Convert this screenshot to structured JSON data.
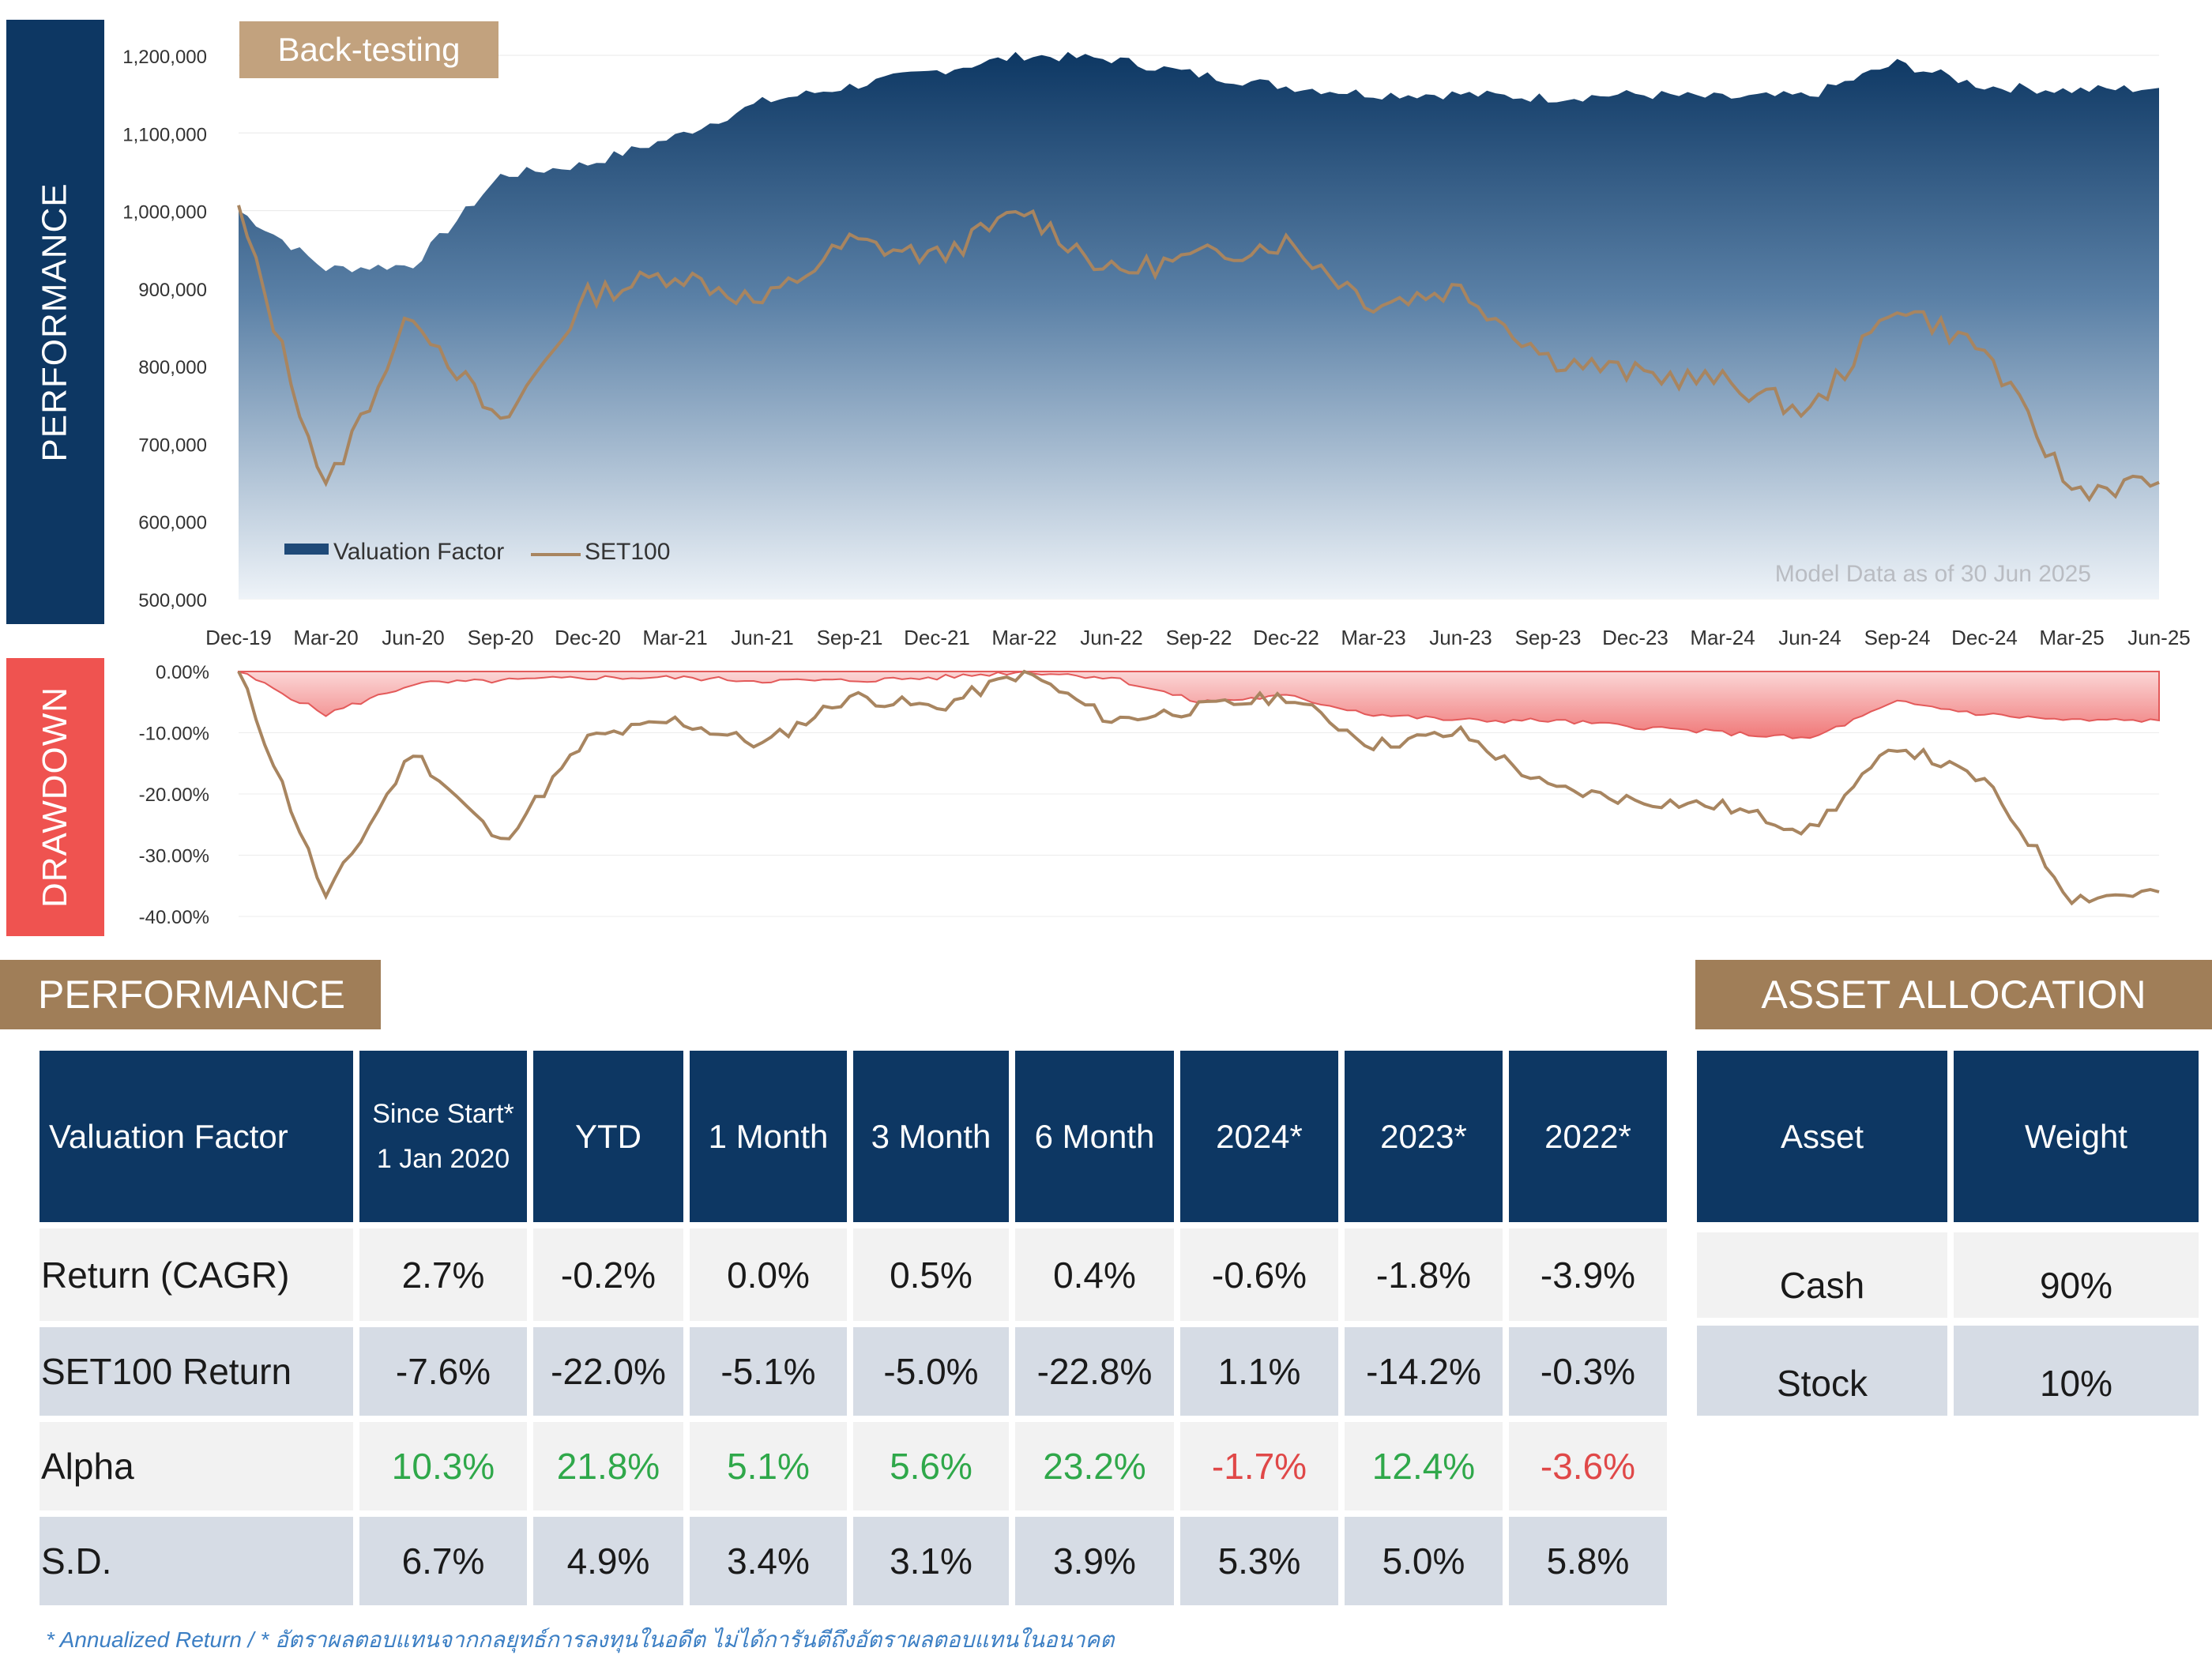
{
  "side_tabs": {
    "performance": "PERFORMANCE",
    "drawdown": "DRAWDOWN"
  },
  "colors": {
    "navy": "#0d3763",
    "gold": "#a88560",
    "gold_light": "#c2a27e",
    "red": "#ef5350",
    "positive": "#2fa84a",
    "negative": "#e04848"
  },
  "chart_data": [
    {
      "type": "area",
      "label": "Back-testing",
      "note": "Model Data as of 30 Jun 2025",
      "x_ticks": [
        "Dec-19",
        "Mar-20",
        "Jun-20",
        "Sep-20",
        "Dec-20",
        "Mar-21",
        "Jun-21",
        "Sep-21",
        "Dec-21",
        "Mar-22",
        "Jun-22",
        "Sep-22",
        "Dec-22",
        "Mar-23",
        "Jun-23",
        "Sep-23",
        "Dec-23",
        "Mar-24",
        "Jun-24",
        "Sep-24",
        "Dec-24",
        "Mar-25",
        "Jun-25"
      ],
      "y_ticks": [
        "1,200,000",
        "1,100,000",
        "1,000,000",
        "900,000",
        "800,000",
        "700,000",
        "600,000",
        "500,000"
      ],
      "ylim": [
        500000,
        1200000
      ],
      "legend": [
        "Valuation Factor",
        "SET100"
      ],
      "series": [
        {
          "name": "Valuation Factor",
          "values": [
            1000000,
            925000,
            930000,
            1045000,
            1060000,
            1095000,
            1140000,
            1160000,
            1180000,
            1200000,
            1195000,
            1175000,
            1160000,
            1150000,
            1150000,
            1145000,
            1150000,
            1145000,
            1148000,
            1190000,
            1160000,
            1155000,
            1158000
          ]
        },
        {
          "name": "SET100",
          "values": [
            1000000,
            640000,
            870000,
            720000,
            890000,
            920000,
            880000,
            960000,
            940000,
            1000000,
            920000,
            940000,
            960000,
            880000,
            900000,
            810000,
            790000,
            780000,
            740000,
            880000,
            820000,
            640000,
            650000
          ]
        }
      ]
    },
    {
      "type": "area",
      "y_ticks": [
        "0.00%",
        "-10.00%",
        "-20.00%",
        "-30.00%",
        "-40.00%"
      ],
      "ylim": [
        -40,
        0
      ],
      "series": [
        {
          "name": "Valuation Factor",
          "values": [
            0,
            -7,
            -2,
            -1.5,
            -1,
            -1,
            -1.5,
            -1.5,
            -1,
            0,
            -1,
            -5,
            -4,
            -7,
            -8,
            -8,
            -9,
            -10,
            -11,
            -5,
            -7,
            -8,
            -8
          ]
        },
        {
          "name": "SET100",
          "values": [
            0,
            -37,
            -13,
            -28,
            -11,
            -8,
            -12,
            -4,
            -6,
            0,
            -8,
            -6,
            -4,
            -12,
            -10,
            -19,
            -21,
            -22,
            -26,
            -12,
            -18,
            -37,
            -36
          ]
        }
      ]
    }
  ],
  "performance": {
    "title": "PERFORMANCE",
    "headers": [
      "Valuation Factor",
      "Since Start*",
      "1 Jan 2020",
      "YTD",
      "1 Month",
      "3 Month",
      "6 Month",
      "2024*",
      "2023*",
      "2022*"
    ],
    "rows": [
      {
        "label": "Return (CAGR)",
        "values": [
          "2.7%",
          "-0.2%",
          "0.0%",
          "0.5%",
          "0.4%",
          "-0.6%",
          "-1.8%",
          "-3.9%"
        ]
      },
      {
        "label": "SET100 Return",
        "values": [
          "-7.6%",
          "-22.0%",
          "-5.1%",
          "-5.0%",
          "-22.8%",
          "1.1%",
          "-14.2%",
          "-0.3%"
        ]
      },
      {
        "label": "Alpha",
        "values": [
          "10.3%",
          "21.8%",
          "5.1%",
          "5.6%",
          "23.2%",
          "-1.7%",
          "12.4%",
          "-3.6%"
        ]
      },
      {
        "label": "S.D.",
        "values": [
          "6.7%",
          "4.9%",
          "3.4%",
          "3.1%",
          "3.9%",
          "5.3%",
          "5.0%",
          "5.8%"
        ]
      }
    ]
  },
  "asset_allocation": {
    "title": "ASSET ALLOCATION",
    "headers": [
      "Asset",
      "Weight"
    ],
    "rows": [
      {
        "asset": "Cash",
        "weight": "90%"
      },
      {
        "asset": "Stock",
        "weight": "10%"
      }
    ]
  },
  "footnote": "* Annualized Return  /  * อัตราผลตอบแทนจากกลยุทธ์การลงทุนในอดีต ไม่ได้การันตีถึงอัตราผลตอบแทนในอนาคต"
}
